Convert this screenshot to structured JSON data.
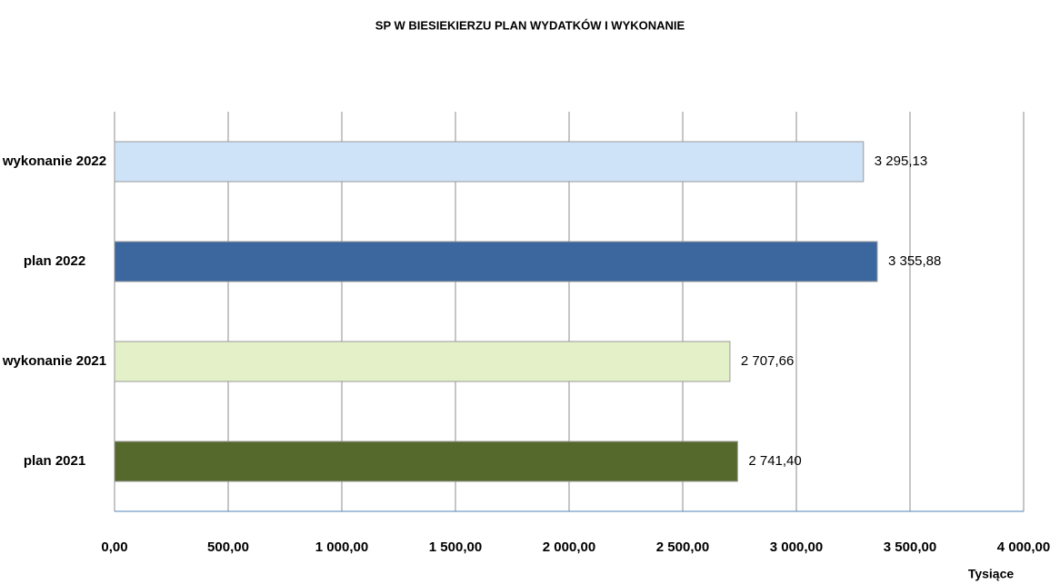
{
  "chart_data": {
    "type": "bar",
    "orientation": "horizontal",
    "title": "SP W BIESIEKIERZU PLAN WYDATKÓW I WYKONANIE",
    "xlabel": "Tysiące",
    "categories": [
      "wykonanie 2022",
      "plan 2022",
      "wykonanie 2021",
      "plan 2021"
    ],
    "values": [
      3295.13,
      3355.88,
      2707.66,
      2741.4
    ],
    "value_labels": [
      "3 295,13",
      "3 355,88",
      "2 707,66",
      "2 741,40"
    ],
    "colors": [
      "#cfe3f8",
      "#3c679e",
      "#e3f0c8",
      "#56692c"
    ],
    "xlim": [
      0,
      4000
    ],
    "xticks": [
      {
        "value": 0,
        "label": "0,00"
      },
      {
        "value": 500,
        "label": "500,00"
      },
      {
        "value": 1000,
        "label": "1 000,00"
      },
      {
        "value": 1500,
        "label": "1 500,00"
      },
      {
        "value": 2000,
        "label": "2 000,00"
      },
      {
        "value": 2500,
        "label": "2 500,00"
      },
      {
        "value": 3000,
        "label": "3 000,00"
      },
      {
        "value": 3500,
        "label": "3 500,00"
      },
      {
        "value": 4000,
        "label": "4 000,00"
      }
    ],
    "grid": true
  }
}
